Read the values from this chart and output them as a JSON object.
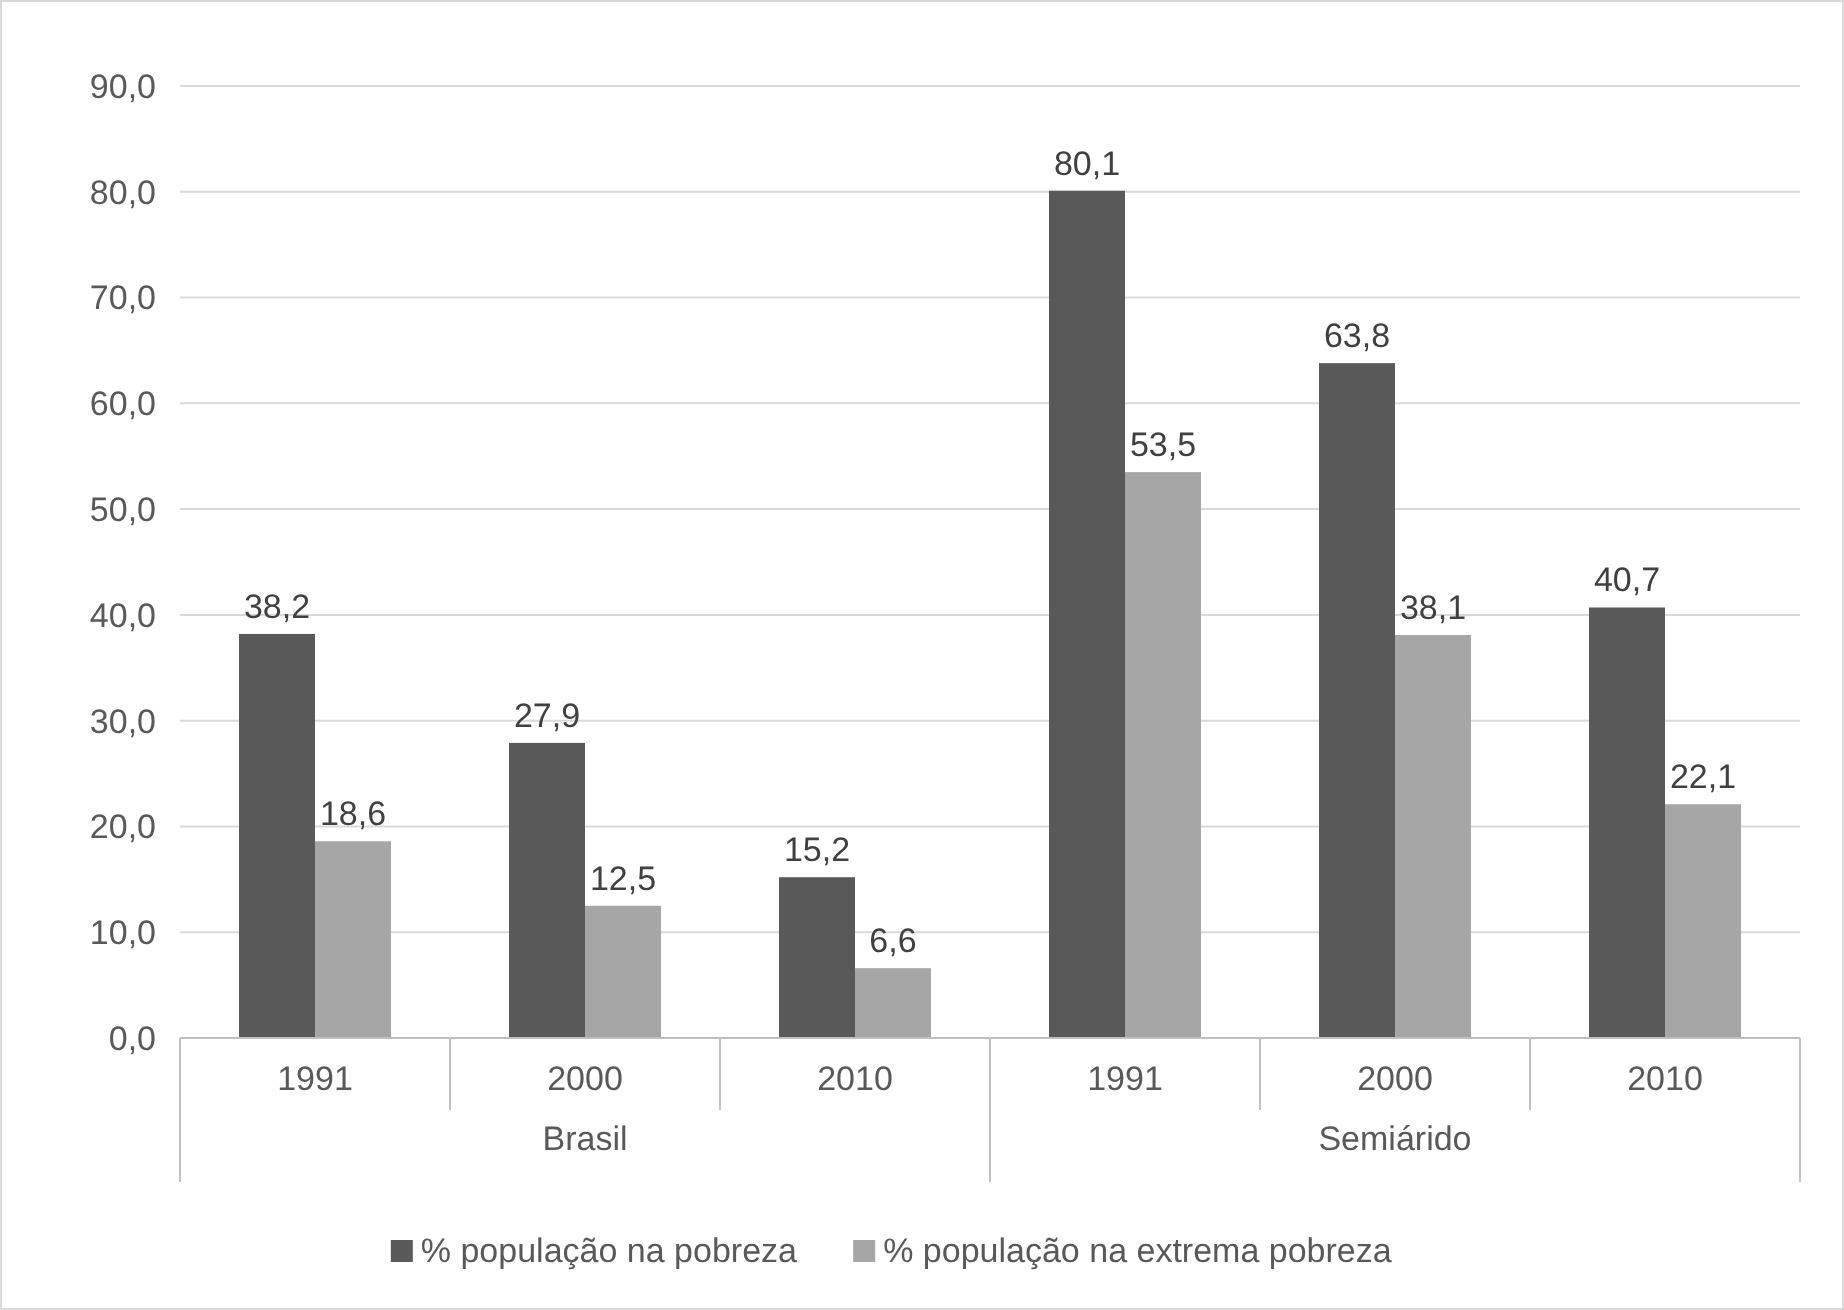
{
  "chart_data": {
    "type": "bar",
    "categories": [
      "1991",
      "2000",
      "2010",
      "1991",
      "2000",
      "2010"
    ],
    "series": [
      {
        "name": "% população na pobreza",
        "color": "#595959",
        "values": [
          38.2,
          27.9,
          15.2,
          80.1,
          63.8,
          40.7
        ],
        "value_labels": [
          "38,2",
          "27,9",
          "15,2",
          "80,1",
          "63,8",
          "40,7"
        ]
      },
      {
        "name": "% população na extrema pobreza",
        "color": "#a6a6a6",
        "values": [
          18.6,
          12.5,
          6.6,
          53.5,
          38.1,
          22.1
        ],
        "value_labels": [
          "18,6",
          "12,5",
          "6,6",
          "53,5",
          "38,1",
          "22,1"
        ]
      }
    ],
    "ylim": [
      0,
      90
    ],
    "yticks": [
      {
        "value": 0,
        "label": "0,0"
      },
      {
        "value": 10,
        "label": "10,0"
      },
      {
        "value": 20,
        "label": "20,0"
      },
      {
        "value": 30,
        "label": "30,0"
      },
      {
        "value": 40,
        "label": "40,0"
      },
      {
        "value": 50,
        "label": "50,0"
      },
      {
        "value": 60,
        "label": "60,0"
      },
      {
        "value": 70,
        "label": "70,0"
      },
      {
        "value": 80,
        "label": "80,0"
      },
      {
        "value": 90,
        "label": "90,0"
      }
    ],
    "annotations": [
      "Brasil",
      "Semiárido"
    ],
    "grid": "y",
    "legend": "bottom"
  }
}
